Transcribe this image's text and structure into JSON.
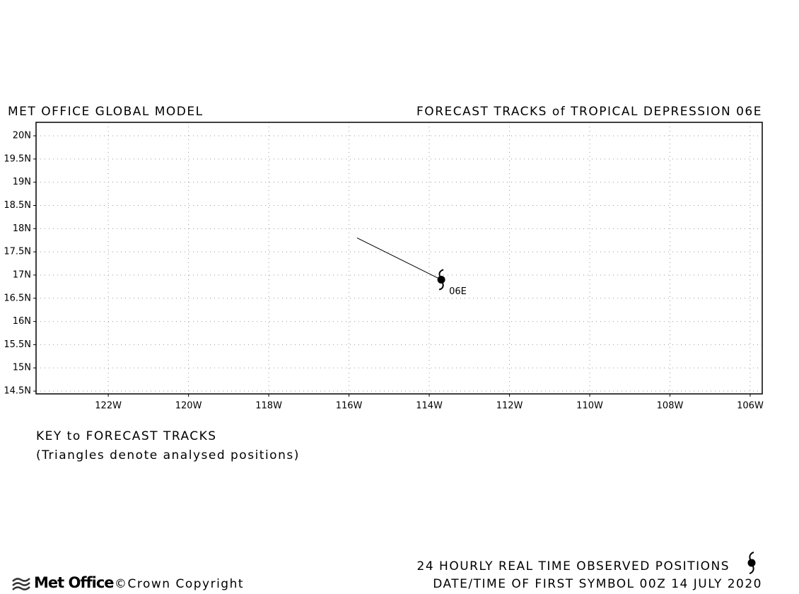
{
  "model": "MET OFFICE GLOBAL MODEL",
  "chart_data": {
    "type": "line",
    "title": "FORECAST TRACKS of TROPICAL DEPRESSION 06E",
    "series": [
      {
        "name": "06E",
        "color": "#000000",
        "x": [
          -115.8,
          -113.7
        ],
        "values": [
          17.8,
          16.9
        ]
      }
    ],
    "xlim": [
      -123.8,
      -105.7
    ],
    "ylim": [
      14.44,
      20.29
    ],
    "xticks": [
      {
        "value": -122,
        "label": "122W"
      },
      {
        "value": -120,
        "label": "120W"
      },
      {
        "value": -118,
        "label": "118W"
      },
      {
        "value": -116,
        "label": "116W"
      },
      {
        "value": -114,
        "label": "114W"
      },
      {
        "value": -112,
        "label": "112W"
      },
      {
        "value": -110,
        "label": "110W"
      },
      {
        "value": -108,
        "label": "108W"
      },
      {
        "value": -106,
        "label": "106W"
      }
    ],
    "yticks": [
      {
        "value": 14.5,
        "label": "14.5N"
      },
      {
        "value": 15,
        "label": "15N"
      },
      {
        "value": 15.5,
        "label": "15.5N"
      },
      {
        "value": 16,
        "label": "16N"
      },
      {
        "value": 16.5,
        "label": "16.5N"
      },
      {
        "value": 17,
        "label": "17N"
      },
      {
        "value": 17.5,
        "label": "17.5N"
      },
      {
        "value": 18,
        "label": "18N"
      },
      {
        "value": 18.5,
        "label": "18.5N"
      },
      {
        "value": 19,
        "label": "19N"
      },
      {
        "value": 19.5,
        "label": "19.5N"
      },
      {
        "value": 20,
        "label": "20N"
      }
    ],
    "grid": true
  },
  "key": {
    "title": "KEY to FORECAST TRACKS",
    "note": "(Triangles denote analysed positions)"
  },
  "footer": {
    "observed": "24 HOURLY REAL TIME OBSERVED POSITIONS",
    "first_symbol": "DATE/TIME OF FIRST SYMBOL 00Z 14 JULY 2020",
    "logo": "Met Office",
    "copyright": "©Crown Copyright"
  }
}
